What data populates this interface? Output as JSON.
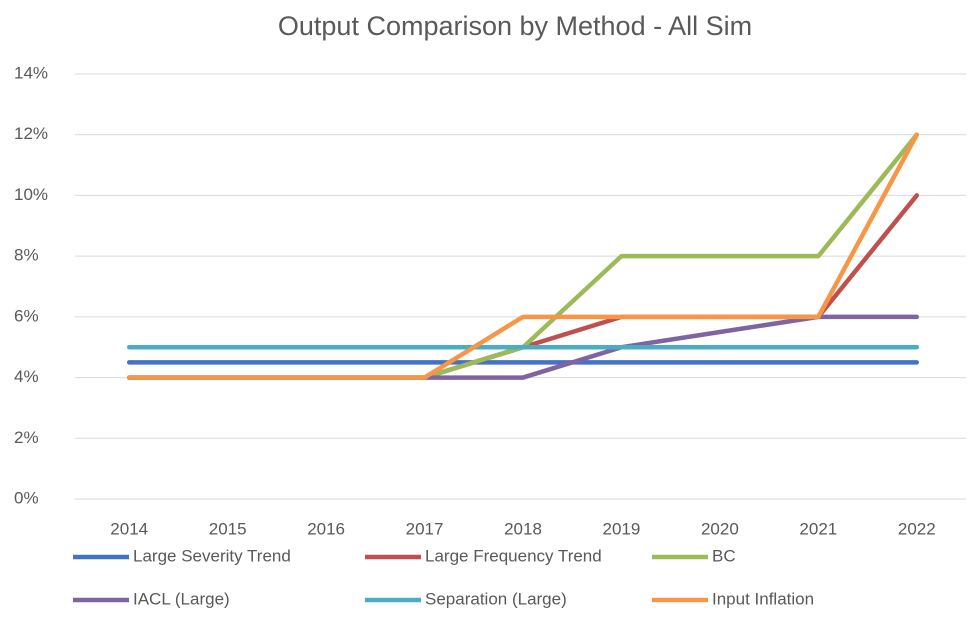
{
  "chart_data": {
    "type": "line",
    "title": "Output Comparison by Method - All Sim",
    "categories": [
      "2014",
      "2015",
      "2016",
      "2017",
      "2018",
      "2019",
      "2020",
      "2021",
      "2022"
    ],
    "series": [
      {
        "name": "Large Severity Trend",
        "color": "#4472c4",
        "values": [
          4.5,
          4.5,
          4.5,
          4.5,
          4.5,
          4.5,
          4.5,
          4.5,
          4.5
        ]
      },
      {
        "name": "Large Frequency Trend",
        "color": "#c0504d",
        "values": [
          4,
          4,
          4,
          4,
          5,
          6,
          6,
          6,
          10
        ]
      },
      {
        "name": "BC",
        "color": "#9bbb59",
        "values": [
          4,
          4,
          4,
          4,
          5,
          8,
          8,
          8,
          12
        ]
      },
      {
        "name": "IACL (Large)",
        "color": "#8064a2",
        "values": [
          4,
          4,
          4,
          4,
          4,
          5,
          5.5,
          6,
          6
        ]
      },
      {
        "name": "Separation (Large)",
        "color": "#4bacc6",
        "values": [
          5,
          5,
          5,
          5,
          5,
          5,
          5,
          5,
          5
        ]
      },
      {
        "name": "Input Inflation",
        "color": "#f79646",
        "values": [
          4,
          4,
          4,
          4,
          6,
          6,
          6,
          6,
          12
        ]
      }
    ],
    "ylim": [
      0,
      14
    ],
    "yticks": [
      {
        "value": 0,
        "label": "0%"
      },
      {
        "value": 2,
        "label": "2%"
      },
      {
        "value": 4,
        "label": "4%"
      },
      {
        "value": 6,
        "label": "6%"
      },
      {
        "value": 8,
        "label": "8%"
      },
      {
        "value": 10,
        "label": "10%"
      },
      {
        "value": 12,
        "label": "12%"
      },
      {
        "value": 14,
        "label": "14%"
      }
    ],
    "grid": true,
    "legend": "bottom"
  }
}
